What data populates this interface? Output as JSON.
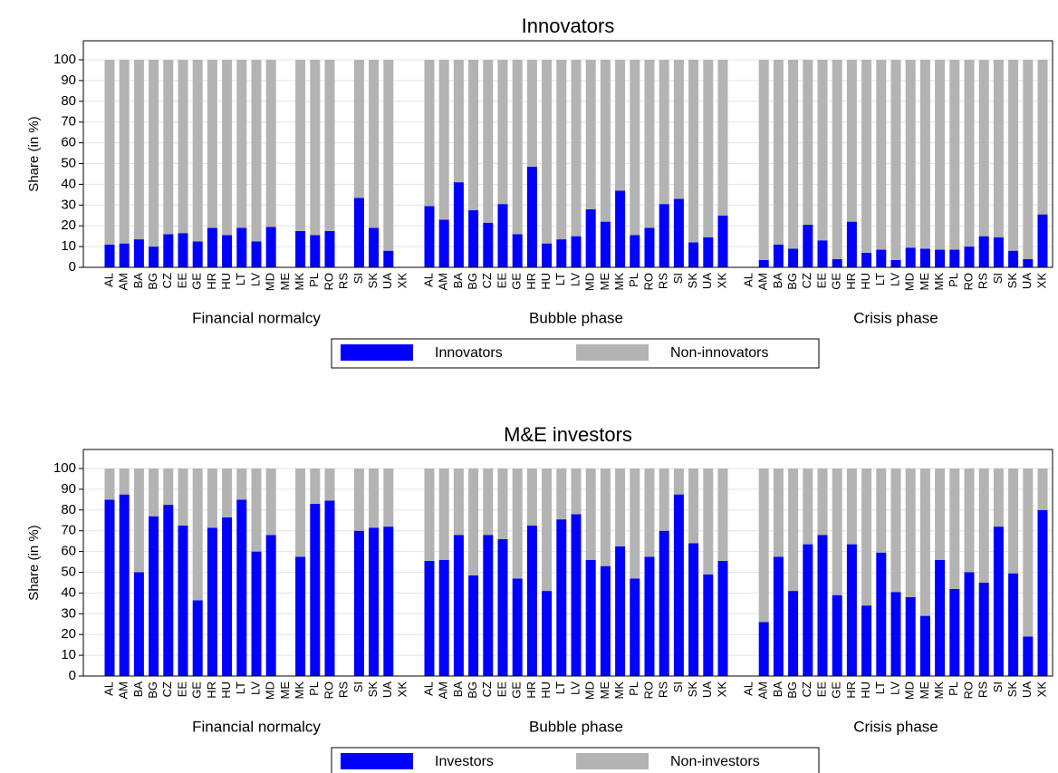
{
  "chart_data": [
    {
      "type": "bar",
      "stacked": true,
      "title": "Innovators",
      "y_label": "Share (in %)",
      "ylim": [
        0,
        100
      ],
      "yticks": [
        0,
        10,
        20,
        30,
        40,
        50,
        60,
        70,
        80,
        90,
        100
      ],
      "grid": true,
      "legend": "bottom",
      "series": [
        {
          "name": "Innovators",
          "color": "#0000ff"
        },
        {
          "name": "Non-innovators",
          "color": "#b3b3b3"
        }
      ],
      "groups": [
        {
          "name": "Financial normalcy",
          "categories": [
            "AL",
            "AM",
            "BA",
            "BG",
            "CZ",
            "EE",
            "GE",
            "HR",
            "HU",
            "LT",
            "LV",
            "MD",
            "ME",
            "MK",
            "PL",
            "RO",
            "RS",
            "SI",
            "SK",
            "UA",
            "XK"
          ],
          "values": [
            [
              11,
              11.5,
              13.5,
              10,
              16,
              16.5,
              12.5,
              19,
              15.5,
              19,
              12.5,
              19.5,
              null,
              17.5,
              15.5,
              17.5,
              null,
              33.5,
              19,
              8,
              null
            ],
            [
              89,
              88.5,
              86.5,
              90,
              84,
              83.5,
              87.5,
              81,
              84.5,
              81,
              87.5,
              80.5,
              null,
              82.5,
              84.5,
              82.5,
              null,
              66.5,
              81,
              92,
              null
            ]
          ]
        },
        {
          "name": "Bubble phase",
          "categories": [
            "AL",
            "AM",
            "BA",
            "BG",
            "CZ",
            "EE",
            "GE",
            "HR",
            "HU",
            "LT",
            "LV",
            "MD",
            "ME",
            "MK",
            "PL",
            "RO",
            "RS",
            "SI",
            "SK",
            "UA",
            "XK"
          ],
          "values": [
            [
              29.5,
              23,
              41,
              27.5,
              21.5,
              30.5,
              16,
              48.5,
              11.5,
              13.5,
              15,
              28,
              22,
              37,
              15.5,
              19,
              30.5,
              33,
              12,
              14.5,
              25
            ],
            [
              70.5,
              77,
              59,
              72.5,
              78.5,
              69.5,
              84,
              51.5,
              88.5,
              86.5,
              85,
              72,
              78,
              63,
              84.5,
              81,
              69.5,
              67,
              88,
              85.5,
              75
            ]
          ]
        },
        {
          "name": "Crisis phase",
          "categories": [
            "AL",
            "AM",
            "BA",
            "BG",
            "CZ",
            "EE",
            "GE",
            "HR",
            "HU",
            "LT",
            "LV",
            "MD",
            "ME",
            "MK",
            "PL",
            "RO",
            "RS",
            "SI",
            "SK",
            "UA",
            "XK"
          ],
          "values": [
            [
              null,
              3.5,
              11,
              9,
              20.5,
              13,
              4,
              22,
              7,
              8.5,
              3.5,
              9.5,
              9,
              8.5,
              8.5,
              10,
              15,
              14.5,
              8,
              4,
              25.5
            ],
            [
              null,
              96.5,
              89,
              91,
              79.5,
              87,
              96,
              78,
              93,
              91.5,
              96.5,
              90.5,
              91,
              91.5,
              91.5,
              90,
              85,
              85.5,
              92,
              96,
              74.5
            ]
          ]
        }
      ]
    },
    {
      "type": "bar",
      "stacked": true,
      "title": "M&E investors",
      "y_label": "Share (in %)",
      "ylim": [
        0,
        100
      ],
      "yticks": [
        0,
        10,
        20,
        30,
        40,
        50,
        60,
        70,
        80,
        90,
        100
      ],
      "grid": true,
      "legend": "bottom",
      "series": [
        {
          "name": "Investors",
          "color": "#0000ff"
        },
        {
          "name": "Non-investors",
          "color": "#b3b3b3"
        }
      ],
      "groups": [
        {
          "name": "Financial normalcy",
          "categories": [
            "AL",
            "AM",
            "BA",
            "BG",
            "CZ",
            "EE",
            "GE",
            "HR",
            "HU",
            "LT",
            "LV",
            "MD",
            "ME",
            "MK",
            "PL",
            "RO",
            "RS",
            "SI",
            "SK",
            "UA",
            "XK"
          ],
          "values": [
            [
              85,
              87.5,
              50,
              77,
              82.5,
              72.5,
              36.5,
              71.5,
              76.5,
              85,
              60,
              68,
              null,
              57.5,
              83,
              84.5,
              null,
              70,
              71.5,
              72,
              null
            ],
            [
              15,
              12.5,
              50,
              23,
              17.5,
              27.5,
              63.5,
              28.5,
              23.5,
              15,
              40,
              32,
              null,
              42.5,
              17,
              15.5,
              null,
              30,
              28.5,
              28,
              null
            ]
          ]
        },
        {
          "name": "Bubble phase",
          "categories": [
            "AL",
            "AM",
            "BA",
            "BG",
            "CZ",
            "EE",
            "GE",
            "HR",
            "HU",
            "LT",
            "LV",
            "MD",
            "ME",
            "MK",
            "PL",
            "RO",
            "RS",
            "SI",
            "SK",
            "UA",
            "XK"
          ],
          "values": [
            [
              55.5,
              56,
              68,
              48.5,
              68,
              66,
              47,
              72.5,
              41,
              75.5,
              78,
              56,
              53,
              62.5,
              47,
              57.5,
              70,
              87.5,
              64,
              49,
              55.5
            ],
            [
              44.5,
              44,
              32,
              51.5,
              32,
              34,
              53,
              27.5,
              59,
              24.5,
              22,
              44,
              47,
              37.5,
              53,
              42.5,
              30,
              12.5,
              36,
              51,
              44.5
            ]
          ]
        },
        {
          "name": "Crisis phase",
          "categories": [
            "AL",
            "AM",
            "BA",
            "BG",
            "CZ",
            "EE",
            "GE",
            "HR",
            "HU",
            "LT",
            "LV",
            "MD",
            "ME",
            "MK",
            "PL",
            "RO",
            "RS",
            "SI",
            "SK",
            "UA",
            "XK"
          ],
          "values": [
            [
              null,
              26,
              57.5,
              41,
              63.5,
              68,
              39,
              63.5,
              34,
              59.5,
              40.5,
              38,
              29,
              56,
              42,
              50,
              45,
              72,
              49.5,
              19,
              80
            ],
            [
              null,
              74,
              42.5,
              59,
              36.5,
              32,
              61,
              36.5,
              66,
              40.5,
              59.5,
              62,
              71,
              44,
              58,
              50,
              55,
              28,
              50.5,
              81,
              20
            ]
          ]
        }
      ]
    }
  ]
}
